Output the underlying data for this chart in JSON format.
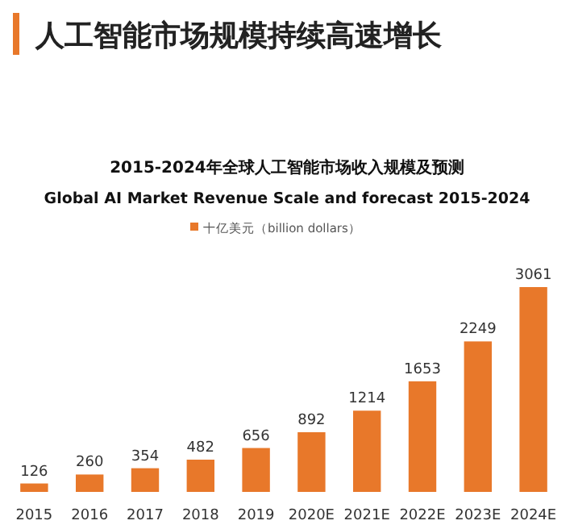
{
  "chart_data": {
    "type": "bar",
    "title": "人工智能市场规模持续高速增长",
    "subtitle": "2015-2024年全球人工智能市场收入规模及预测",
    "annotations": [
      "Global AI Market Revenue Scale and forecast 2015-2024"
    ],
    "categories": [
      "2015",
      "2016",
      "2017",
      "2018",
      "2019",
      "2020E",
      "2021E",
      "2022E",
      "2023E",
      "2024E"
    ],
    "series": [
      {
        "name": "十亿美元（billion dollars）",
        "color": "#e8782a",
        "values": [
          126,
          260,
          354,
          482,
          656,
          892,
          1214,
          1653,
          2249,
          3061
        ]
      }
    ],
    "data_labels": true,
    "legend": "top"
  }
}
